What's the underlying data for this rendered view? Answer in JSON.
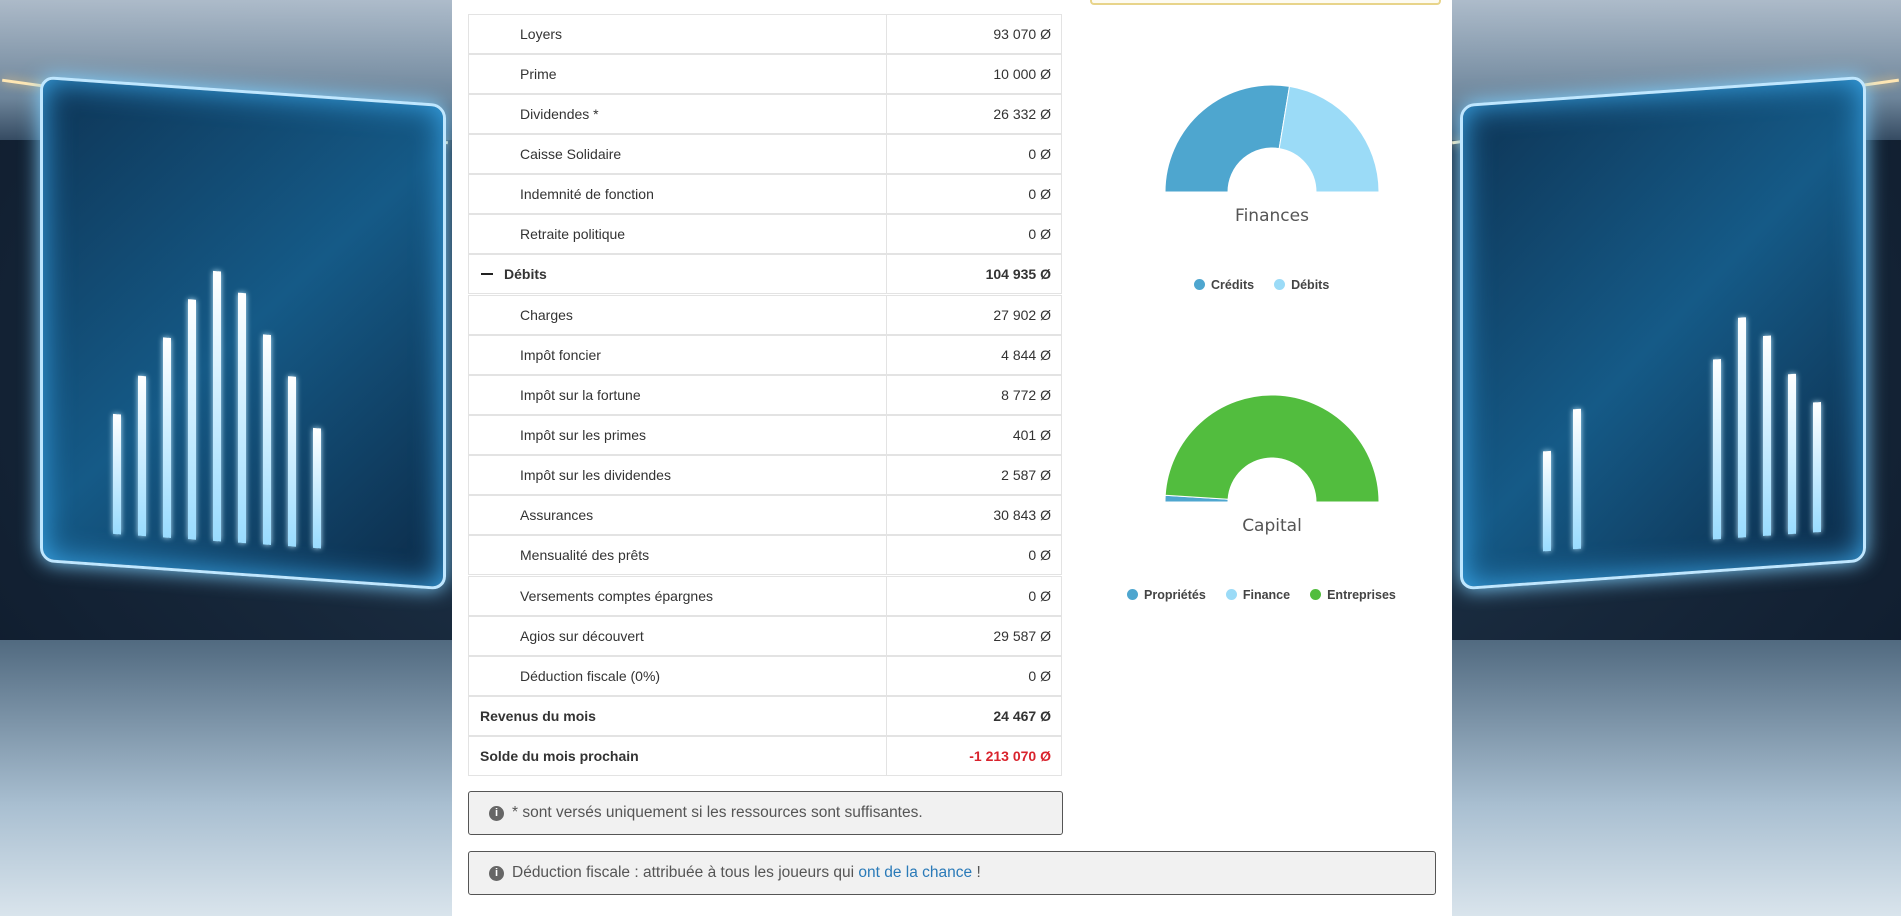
{
  "rows": [
    {
      "label": "Loyers",
      "value": "93 070 Ø"
    },
    {
      "label": "Prime",
      "value": "10 000 Ø"
    },
    {
      "label": "Dividendes *",
      "value": "26 332 Ø"
    },
    {
      "label": "Caisse Solidaire",
      "value": "0 Ø"
    },
    {
      "label": "Indemnité de fonction",
      "value": "0 Ø"
    },
    {
      "label": "Retraite politique",
      "value": "0 Ø"
    },
    {
      "label": "Débits",
      "value": "104 935 Ø"
    },
    {
      "label": "Charges",
      "value": "27 902 Ø"
    },
    {
      "label": "Impôt foncier",
      "value": "4 844 Ø"
    },
    {
      "label": "Impôt sur la fortune",
      "value": "8 772 Ø"
    },
    {
      "label": "Impôt sur les primes",
      "value": "401 Ø"
    },
    {
      "label": "Impôt sur les dividendes",
      "value": "2 587 Ø"
    },
    {
      "label": "Assurances",
      "value": "30 843 Ø"
    },
    {
      "label": "Mensualité des prêts",
      "value": "0 Ø"
    },
    {
      "label": "Versements comptes épargnes",
      "value": "0 Ø"
    },
    {
      "label": "Agios sur découvert",
      "value": "29 587 Ø"
    },
    {
      "label": "Déduction fiscale (0%)",
      "value": "0 Ø"
    },
    {
      "label": "Revenus du mois",
      "value": "24 467 Ø"
    },
    {
      "label": "Solde du mois prochain",
      "value": "-1 213 070 Ø"
    }
  ],
  "notes": {
    "n1_text": "* sont versés uniquement si les ressources sont suffisantes.",
    "n2_text": "Déduction fiscale : attribuée à tous les joueurs qui ",
    "n2_link": "ont de la chance",
    "n2_end": " !",
    "info_icon": "i"
  },
  "charts": {
    "finances": {
      "title": "Finances",
      "legend": [
        "Crédits",
        "Débits"
      ],
      "colors": [
        "#4ea6cf",
        "#9bdbf7"
      ],
      "values": [
        129402,
        104935
      ]
    },
    "capital": {
      "title": "Capital",
      "legend": [
        "Propriétés",
        "Finance",
        "Entreprises"
      ],
      "colors": [
        "#4ea6cf",
        "#9bdbf7",
        "#52bd3e"
      ],
      "values": [
        2,
        0,
        98
      ]
    }
  }
}
